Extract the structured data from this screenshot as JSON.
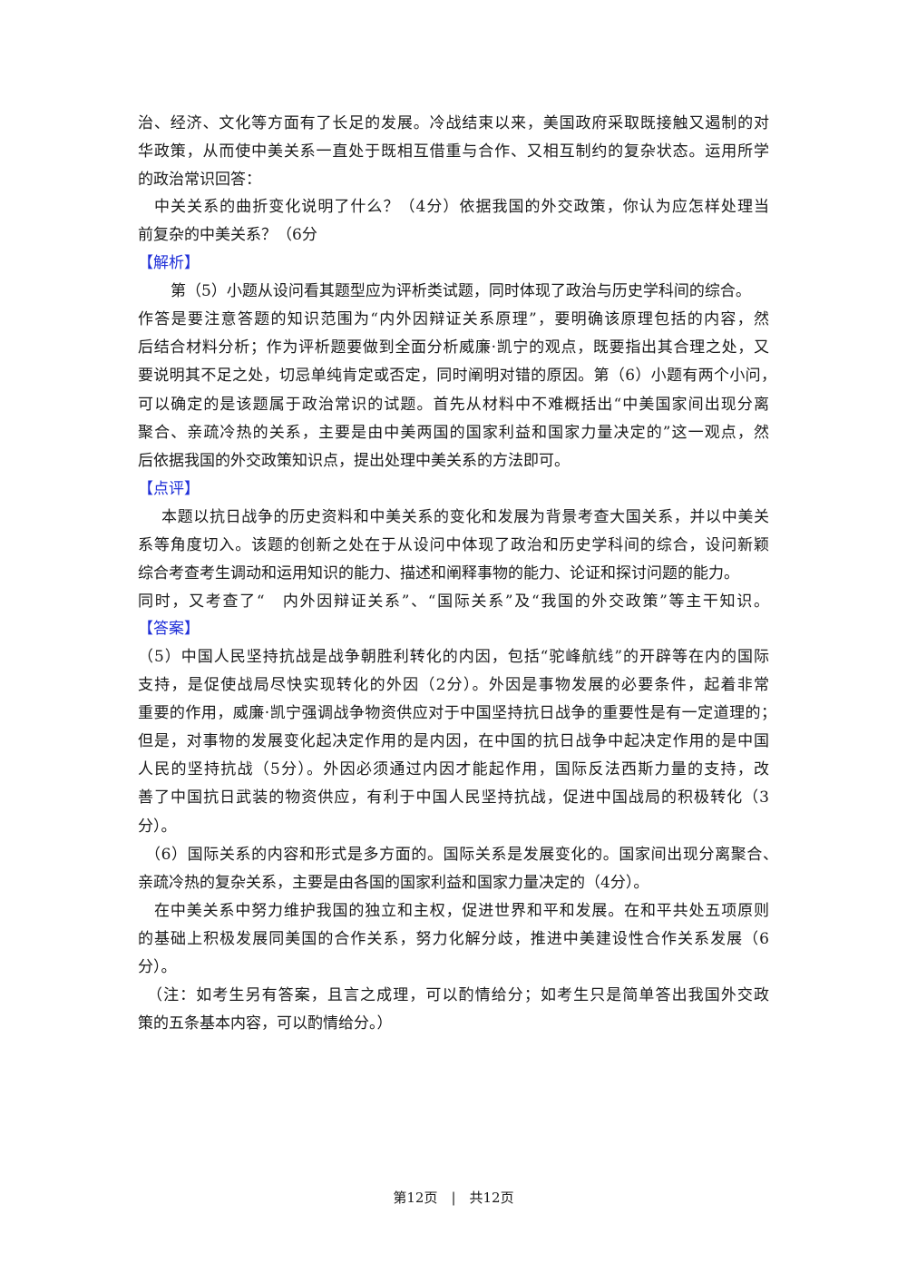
{
  "lines": [
    "治、经济、文化等方面有了长足的发展。冷战结束以来，美国政府采取既接触又遏制的对",
    "华政策，从而使中美关系一直处于既相互借重与合作、又相互制约的复杂状态。运用所学",
    "的政治常识回答：",
    "中关关系的曲折变化说明了什么？（4分）依据我国的外交政策，你认为应怎样处理当",
    "前复杂的中美关系？（6分",
    "【解析】",
    "第（5）小题从设问看其题型应为评析类试题，同时体现了政治与历史学科间的综合。",
    "作答是要注意答题的知识范围为“内外因辩证关系原理”，要明确该原理包括的内容，然",
    "后结合材料分析；作为评析题要做到全面分析威廉·凯宁的观点，既要指出其合理之处，又",
    "要说明其不足之处，切忌单纯肯定或否定，同时阐明对错的原因。第（6）小题有两个小问，",
    "可以确定的是该题属于政治常识的试题。首先从材料中不难概括出“中美国家间出现分离",
    "聚合、亲疏冷热的关系，主要是由中美两国的国家利益和国家力量决定的”这一观点，然",
    "后依据我国的外交政策知识点，提出处理中美关系的方法即可。",
    "【点评】",
    "本题以抗日战争的历史资料和中美关系的变化和发展为背景考查大国关系，并以中美关",
    "系等角度切入。该题的创新之处在于从设问中体现了政治和历史学科间的综合，设问新颖",
    "综合考查考生调动和运用知识的能力、描述和阐释事物的能力、论证和探讨问题的能力。",
    "同时，又考查了“　内外因辩证关系”、“国际关系”及“我国的外交政策”等主干知识。",
    "【答案】",
    "（5）中国人民坚持抗战是战争朝胜利转化的内因，包括“驼峰航线”的开辟等在内的国际",
    "支持，是促使战局尽快实现转化的外因（2分）。外因是事物发展的必要条件，起着非常",
    "重要的作用，威廉·凯宁强调战争物资供应对于中国坚持抗日战争的重要性是有一定道理的；",
    "但是，对事物的发展变化起决定作用的是内因，在中国的抗日战争中起决定作用的是中国",
    "人民的坚持抗战（5分）。外因必须通过内因才能起作用，国际反法西斯力量的支持，改",
    "善了中国抗日武装的物资供应，有利于中国人民坚持抗战，促进中国战局的积极转化（3",
    "分）。",
    "（6）国际关系的内容和形式是多方面的。国际关系是发展变化的。国家间出现分离聚合、",
    "亲疏冷热的复杂关系，主要是由各国的国家利益和国家力量决定的（4分）。",
    "在中美关系中努力维护我国的独立和主权，促进世界和平和发展。在和平共处五项原则",
    "的基础上积极发展同美国的合作关系，努力化解分歧，推进中美建设性合作关系发展（6",
    "分）。",
    "（注：如考生另有答案，且言之成理，可以酌情给分；如考生只是简单答出我国外交政",
    "策的五条基本内容，可以酌情给分。）"
  ],
  "footer": "第12页　|　共12页",
  "colors": {
    "section_heading": "#1f2fd8",
    "text": "#1a1a1a"
  }
}
